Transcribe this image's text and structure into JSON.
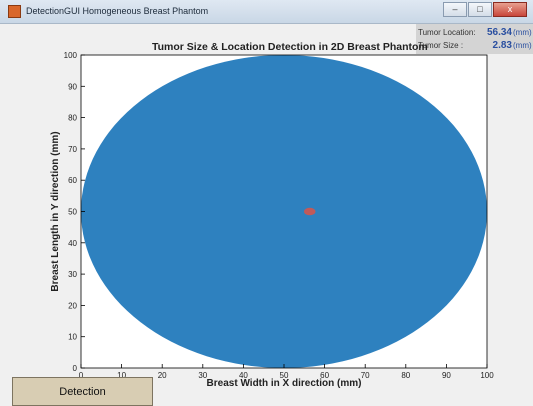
{
  "window": {
    "title": "DetectionGUI Homogeneous Breast Phantom",
    "minimize_glyph": "–",
    "maximize_glyph": "□",
    "close_glyph": "x"
  },
  "info": {
    "location_label": "Tumor Location:",
    "location_value": "56.34",
    "location_unit": "(mm)",
    "size_label": "Tumor Size :",
    "size_value": "2.83",
    "size_unit": "(mm)"
  },
  "plot_title": "Tumor Size & Location Detection in 2D Breast Phantom",
  "detect_button": "Detection",
  "chart_data": {
    "type": "scatter",
    "title": "Tumor Size & Location Detection in 2D Breast Phantom",
    "xlabel": "Breast Width in X direction  (mm)",
    "ylabel": "Breast Length in Y direction  (mm)",
    "xlim": [
      0,
      100
    ],
    "ylim": [
      0,
      100
    ],
    "xticks": [
      0,
      10,
      20,
      30,
      40,
      50,
      60,
      70,
      80,
      90,
      100
    ],
    "yticks": [
      0,
      10,
      20,
      30,
      40,
      50,
      60,
      70,
      80,
      90,
      100
    ],
    "grid": false,
    "phantom": {
      "center": [
        50,
        50
      ],
      "rx": 50,
      "ry": 50,
      "color": "#2e81bf"
    },
    "tumor": {
      "center": [
        56.34,
        50
      ],
      "size": 2.83,
      "color": "#c05a5a"
    }
  }
}
